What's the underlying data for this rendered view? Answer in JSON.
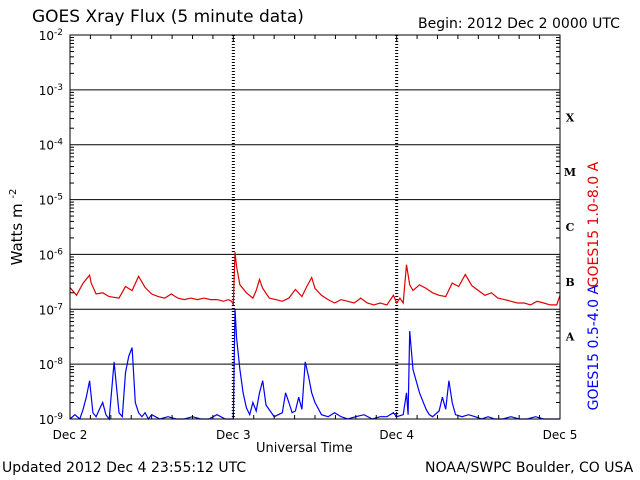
{
  "header": {
    "title": "GOES Xray Flux (5 minute data)",
    "begin": "Begin:  2012 Dec 2 0000 UTC"
  },
  "footer": {
    "updated": "Updated 2012 Dec  4 23:55:12 UTC",
    "credit": "NOAA/SWPC Boulder, CO USA"
  },
  "colors": {
    "long": "#e00000",
    "short": "#0000ff",
    "axis": "#000000"
  },
  "chart_data": {
    "type": "line",
    "title": "GOES Xray Flux (5 minute data)",
    "xlabel": "Universal Time",
    "ylabel": "Watts m",
    "ylabel_sup": "-2",
    "yscale": "log",
    "ylim": [
      1e-09,
      0.01
    ],
    "y_ticks": [
      {
        "value": 0.01,
        "mant": "10",
        "exp": "-2"
      },
      {
        "value": 0.001,
        "mant": "10",
        "exp": "-3"
      },
      {
        "value": 0.0001,
        "mant": "10",
        "exp": "-4"
      },
      {
        "value": 1e-05,
        "mant": "10",
        "exp": "-5"
      },
      {
        "value": 1e-06,
        "mant": "10",
        "exp": "-6"
      },
      {
        "value": 1e-07,
        "mant": "10",
        "exp": "-7"
      },
      {
        "value": 1e-08,
        "mant": "10",
        "exp": "-8"
      },
      {
        "value": 1e-09,
        "mant": "10",
        "exp": "-9"
      }
    ],
    "x_range_days": [
      0,
      3
    ],
    "x_ticks": [
      {
        "day": 0,
        "label": "Dec 2"
      },
      {
        "day": 1,
        "label": "Dec 3"
      },
      {
        "day": 2,
        "label": "Dec 4"
      },
      {
        "day": 3,
        "label": "Dec 5"
      }
    ],
    "flare_classes": [
      {
        "label": "X",
        "value": 0.0003162
      },
      {
        "label": "M",
        "value": 3.162e-05
      },
      {
        "label": "C",
        "value": 3.162e-06
      },
      {
        "label": "B",
        "value": 3.162e-07
      },
      {
        "label": "A",
        "value": 3.162e-08
      }
    ],
    "grid": true,
    "series": [
      {
        "name": "GOES15 1.0-8.0 A",
        "color": "#e00000",
        "x": [
          0,
          0.04,
          0.08,
          0.12,
          0.13,
          0.16,
          0.2,
          0.24,
          0.3,
          0.34,
          0.38,
          0.42,
          0.46,
          0.5,
          0.54,
          0.58,
          0.62,
          0.66,
          0.7,
          0.74,
          0.78,
          0.82,
          0.86,
          0.9,
          0.94,
          0.97,
          0.99,
          1.0,
          1.01,
          1.02,
          1.04,
          1.08,
          1.12,
          1.14,
          1.16,
          1.18,
          1.22,
          1.26,
          1.3,
          1.34,
          1.38,
          1.42,
          1.45,
          1.48,
          1.5,
          1.54,
          1.58,
          1.62,
          1.66,
          1.7,
          1.74,
          1.78,
          1.82,
          1.86,
          1.9,
          1.94,
          1.98,
          2.0,
          2.02,
          2.04,
          2.06,
          2.08,
          2.1,
          2.14,
          2.18,
          2.22,
          2.26,
          2.3,
          2.34,
          2.38,
          2.42,
          2.46,
          2.5,
          2.54,
          2.58,
          2.62,
          2.66,
          2.7,
          2.74,
          2.78,
          2.82,
          2.86,
          2.9,
          2.94,
          2.98,
          3.0
        ],
        "y": [
          2.5e-07,
          1.8e-07,
          3e-07,
          4.2e-07,
          3e-07,
          1.9e-07,
          2e-07,
          1.7e-07,
          1.6e-07,
          2.6e-07,
          2.2e-07,
          4e-07,
          2.5e-07,
          1.9e-07,
          1.7e-07,
          1.6e-07,
          1.9e-07,
          1.6e-07,
          1.5e-07,
          1.6e-07,
          1.5e-07,
          1.6e-07,
          1.5e-07,
          1.5e-07,
          1.4e-07,
          1.5e-07,
          1.4e-07,
          1.2e-07,
          1.1e-06,
          6e-07,
          2.8e-07,
          2e-07,
          1.6e-07,
          2.2e-07,
          3.5e-07,
          2.4e-07,
          1.6e-07,
          1.5e-07,
          1.4e-07,
          1.6e-07,
          2.3e-07,
          1.7e-07,
          2.6e-07,
          3.8e-07,
          2.4e-07,
          1.8e-07,
          1.5e-07,
          1.3e-07,
          1.5e-07,
          1.4e-07,
          1.3e-07,
          1.6e-07,
          1.3e-07,
          1.2e-07,
          1.3e-07,
          1.2e-07,
          1.8e-07,
          1.3e-07,
          1.6e-07,
          1.3e-07,
          6.5e-07,
          2.8e-07,
          2.2e-07,
          2.8e-07,
          2.4e-07,
          2e-07,
          1.8e-07,
          1.7e-07,
          3e-07,
          2.6e-07,
          4.3e-07,
          2.7e-07,
          2.2e-07,
          1.8e-07,
          2e-07,
          1.6e-07,
          1.5e-07,
          1.4e-07,
          1.3e-07,
          1.3e-07,
          1.2e-07,
          1.4e-07,
          1.3e-07,
          1.2e-07,
          1.2e-07,
          1.8e-07
        ]
      },
      {
        "name": "GOES15 0.5-4.0 A",
        "color": "#0000ff",
        "x": [
          0,
          0.03,
          0.06,
          0.08,
          0.1,
          0.12,
          0.14,
          0.16,
          0.18,
          0.2,
          0.22,
          0.24,
          0.27,
          0.3,
          0.32,
          0.34,
          0.36,
          0.38,
          0.4,
          0.42,
          0.44,
          0.46,
          0.48,
          0.5,
          0.55,
          0.6,
          0.65,
          0.7,
          0.75,
          0.8,
          0.85,
          0.9,
          0.95,
          0.98,
          1.0,
          1.01,
          1.02,
          1.04,
          1.06,
          1.08,
          1.1,
          1.12,
          1.14,
          1.16,
          1.18,
          1.2,
          1.25,
          1.3,
          1.32,
          1.34,
          1.36,
          1.38,
          1.4,
          1.42,
          1.44,
          1.46,
          1.48,
          1.5,
          1.54,
          1.58,
          1.62,
          1.66,
          1.7,
          1.75,
          1.8,
          1.85,
          1.9,
          1.94,
          1.98,
          2.0,
          2.04,
          2.06,
          2.07,
          2.08,
          2.1,
          2.14,
          2.18,
          2.2,
          2.22,
          2.26,
          2.28,
          2.3,
          2.32,
          2.34,
          2.36,
          2.4,
          2.44,
          2.48,
          2.52,
          2.56,
          2.6,
          2.65,
          2.7,
          2.75,
          2.8,
          2.85,
          2.9,
          2.95,
          3.0
        ],
        "y": [
          1e-09,
          1.2e-09,
          1e-09,
          1.5e-09,
          2.5e-09,
          5e-09,
          1.3e-09,
          1.1e-09,
          1.5e-09,
          2e-09,
          1.2e-09,
          1e-09,
          1.1e-08,
          1.3e-09,
          1.1e-09,
          7e-09,
          1.4e-08,
          2e-08,
          2e-09,
          1.3e-09,
          1.1e-09,
          1.3e-09,
          1e-09,
          1.2e-09,
          1e-09,
          1.1e-09,
          1e-09,
          1e-09,
          1.1e-09,
          1e-09,
          1e-09,
          1.2e-09,
          1e-09,
          1e-09,
          1e-09,
          1e-07,
          3e-08,
          8e-09,
          3e-09,
          1.6e-09,
          1.2e-09,
          2e-09,
          1.4e-09,
          3e-09,
          5e-09,
          1.8e-09,
          1.1e-09,
          1.3e-09,
          3e-09,
          2e-09,
          1.3e-09,
          1.4e-09,
          2.5e-09,
          1.5e-09,
          1.1e-08,
          6e-09,
          3e-09,
          2e-09,
          1.2e-09,
          1.1e-09,
          1.3e-09,
          1.1e-09,
          1e-09,
          1.1e-09,
          1.2e-09,
          1e-09,
          1.1e-09,
          1.1e-09,
          1.3e-09,
          1.1e-09,
          1.2e-09,
          3e-09,
          1.2e-09,
          4e-08,
          8e-09,
          3e-09,
          1.5e-09,
          1.2e-09,
          1.1e-09,
          1.4e-09,
          2.5e-09,
          1.5e-09,
          5e-09,
          2e-09,
          1.2e-09,
          1.1e-09,
          1.2e-09,
          1.1e-09,
          1e-09,
          1.1e-09,
          1e-09,
          1e-09,
          1.1e-09,
          1e-09,
          1e-09,
          1.1e-09,
          1e-09,
          1e-09,
          1e-09
        ]
      }
    ]
  }
}
